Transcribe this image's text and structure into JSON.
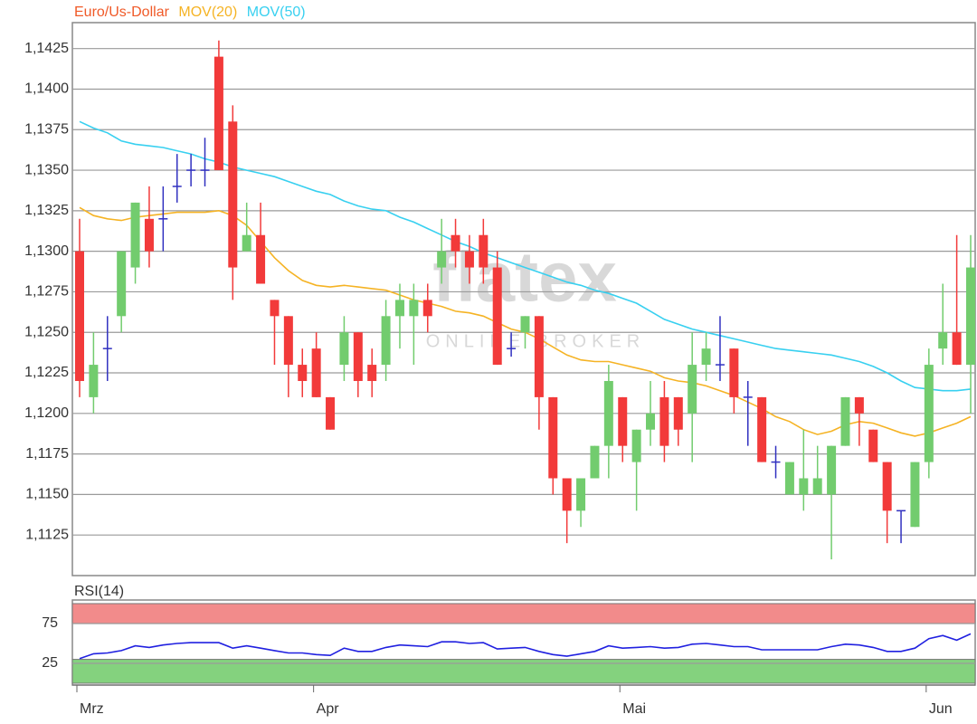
{
  "watermark": {
    "brand": "flatex",
    "tagline": "ONLINE BROKER"
  },
  "chart_data": [
    {
      "type": "candlestick",
      "up_color": "#72cc6e",
      "down_color": "#f23a3a",
      "doji_color": "#3030c0",
      "ylim": [
        1.11,
        1.1441
      ],
      "yticks": [
        {
          "value": 1.1125,
          "label": "1,1125"
        },
        {
          "value": 1.115,
          "label": "1,1150"
        },
        {
          "value": 1.1175,
          "label": "1,1175"
        },
        {
          "value": 1.12,
          "label": "1,1200"
        },
        {
          "value": 1.1225,
          "label": "1,1225"
        },
        {
          "value": 1.125,
          "label": "1,1250"
        },
        {
          "value": 1.1275,
          "label": "1,1275"
        },
        {
          "value": 1.13,
          "label": "1,1300"
        },
        {
          "value": 1.1325,
          "label": "1,1325"
        },
        {
          "value": 1.135,
          "label": "1,1350"
        },
        {
          "value": 1.1375,
          "label": "1,1375"
        },
        {
          "value": 1.14,
          "label": "1,1400"
        },
        {
          "value": 1.1425,
          "label": "1,1425"
        }
      ],
      "grid": true,
      "series": [
        {
          "name": "Euro/Us-Dollar",
          "color": "#f05a28",
          "open": [
            1.13,
            1.121,
            1.124,
            1.126,
            1.129,
            1.132,
            1.132,
            1.134,
            1.135,
            1.135,
            1.142,
            1.138,
            1.13,
            1.131,
            1.127,
            1.126,
            1.123,
            1.124,
            1.121,
            1.123,
            1.125,
            1.123,
            1.123,
            1.126,
            1.126,
            1.127,
            1.129,
            1.131,
            1.13,
            1.131,
            1.129,
            1.124,
            1.125,
            1.126,
            1.121,
            1.116,
            1.114,
            1.116,
            1.118,
            1.121,
            1.117,
            1.119,
            1.121,
            1.121,
            1.12,
            1.123,
            1.123,
            1.124,
            1.121,
            1.121,
            1.117,
            1.115,
            1.115,
            1.115,
            1.115,
            1.118,
            1.121,
            1.119,
            1.117,
            1.114,
            1.113,
            1.117,
            1.124,
            1.125,
            1.123
          ],
          "high": [
            1.132,
            1.125,
            1.126,
            1.13,
            1.133,
            1.134,
            1.134,
            1.136,
            1.136,
            1.137,
            1.143,
            1.139,
            1.133,
            1.133,
            1.127,
            1.126,
            1.124,
            1.125,
            1.121,
            1.126,
            1.125,
            1.124,
            1.127,
            1.128,
            1.128,
            1.128,
            1.132,
            1.132,
            1.131,
            1.132,
            1.13,
            1.125,
            1.126,
            1.126,
            1.121,
            1.116,
            1.116,
            1.118,
            1.123,
            1.121,
            1.119,
            1.122,
            1.122,
            1.121,
            1.125,
            1.125,
            1.126,
            1.124,
            1.122,
            1.121,
            1.118,
            1.117,
            1.119,
            1.118,
            1.118,
            1.121,
            1.121,
            1.119,
            1.117,
            1.114,
            1.117,
            1.124,
            1.128,
            1.131,
            1.131
          ],
          "low": [
            1.121,
            1.12,
            1.122,
            1.125,
            1.128,
            1.129,
            1.13,
            1.133,
            1.134,
            1.134,
            1.135,
            1.127,
            1.13,
            1.128,
            1.123,
            1.121,
            1.121,
            1.121,
            1.119,
            1.122,
            1.121,
            1.121,
            1.122,
            1.124,
            1.123,
            1.125,
            1.128,
            1.129,
            1.128,
            1.128,
            1.123,
            1.1235,
            1.124,
            1.119,
            1.115,
            1.112,
            1.113,
            1.116,
            1.116,
            1.117,
            1.114,
            1.118,
            1.117,
            1.118,
            1.117,
            1.122,
            1.122,
            1.12,
            1.118,
            1.117,
            1.116,
            1.115,
            1.114,
            1.115,
            1.111,
            1.118,
            1.118,
            1.117,
            1.112,
            1.112,
            1.113,
            1.116,
            1.123,
            1.123,
            1.12
          ],
          "close": [
            1.122,
            1.123,
            1.124,
            1.13,
            1.133,
            1.13,
            1.132,
            1.134,
            1.135,
            1.135,
            1.135,
            1.129,
            1.131,
            1.128,
            1.126,
            1.123,
            1.122,
            1.121,
            1.119,
            1.125,
            1.122,
            1.122,
            1.126,
            1.127,
            1.127,
            1.126,
            1.13,
            1.13,
            1.129,
            1.129,
            1.123,
            1.124,
            1.126,
            1.121,
            1.116,
            1.114,
            1.116,
            1.118,
            1.122,
            1.118,
            1.119,
            1.12,
            1.118,
            1.119,
            1.123,
            1.124,
            1.123,
            1.121,
            1.121,
            1.117,
            1.117,
            1.117,
            1.116,
            1.116,
            1.118,
            1.121,
            1.12,
            1.117,
            1.114,
            1.114,
            1.117,
            1.123,
            1.125,
            1.123,
            1.129
          ]
        },
        {
          "name": "MOV(20)",
          "color": "#f5b324",
          "values": [
            1.1327,
            1.1322,
            1.132,
            1.1319,
            1.1321,
            1.1322,
            1.1323,
            1.1324,
            1.1324,
            1.1324,
            1.1325,
            1.1322,
            1.1316,
            1.1306,
            1.1296,
            1.1288,
            1.1282,
            1.1279,
            1.1278,
            1.1279,
            1.1278,
            1.1277,
            1.1276,
            1.1273,
            1.127,
            1.1268,
            1.1266,
            1.1263,
            1.1262,
            1.126,
            1.1256,
            1.1252,
            1.125,
            1.1246,
            1.1241,
            1.1236,
            1.1233,
            1.1232,
            1.1232,
            1.123,
            1.1228,
            1.1226,
            1.1222,
            1.122,
            1.1219,
            1.1217,
            1.1214,
            1.1211,
            1.1207,
            1.1203,
            1.1198,
            1.1195,
            1.119,
            1.1187,
            1.1189,
            1.1193,
            1.1195,
            1.1194,
            1.1191,
            1.1188,
            1.1186,
            1.1188,
            1.1191,
            1.1194,
            1.1198
          ]
        },
        {
          "name": "MOV(50)",
          "color": "#38d0f0",
          "values": [
            1.138,
            1.1376,
            1.1373,
            1.1368,
            1.1366,
            1.1365,
            1.1364,
            1.1362,
            1.136,
            1.1357,
            1.1355,
            1.1352,
            1.135,
            1.1348,
            1.1346,
            1.1343,
            1.134,
            1.1337,
            1.1335,
            1.1331,
            1.1328,
            1.1326,
            1.1325,
            1.1321,
            1.1318,
            1.1314,
            1.131,
            1.1306,
            1.1303,
            1.1299,
            1.1296,
            1.1293,
            1.129,
            1.1287,
            1.1284,
            1.1281,
            1.1279,
            1.1276,
            1.1274,
            1.1271,
            1.1268,
            1.1263,
            1.1258,
            1.1255,
            1.1252,
            1.125,
            1.1248,
            1.1246,
            1.1244,
            1.1242,
            1.124,
            1.1239,
            1.1238,
            1.1237,
            1.1236,
            1.1234,
            1.1232,
            1.1229,
            1.1225,
            1.122,
            1.1216,
            1.1215,
            1.1214,
            1.1214,
            1.1215
          ]
        }
      ]
    },
    {
      "type": "line",
      "categories": [
        "Mrz",
        null,
        null,
        null,
        null,
        null,
        null,
        null,
        null,
        null,
        null,
        null,
        null,
        null,
        null,
        null,
        null,
        "Apr",
        null,
        null,
        null,
        null,
        null,
        null,
        null,
        null,
        null,
        null,
        null,
        null,
        null,
        null,
        null,
        null,
        null,
        null,
        null,
        null,
        null,
        "Mai",
        null,
        null,
        null,
        null,
        null,
        null,
        null,
        null,
        null,
        null,
        null,
        null,
        null,
        null,
        null,
        null,
        null,
        null,
        null,
        null,
        null,
        "Jun",
        null,
        null,
        null
      ],
      "ylim": [
        -2.3,
        104.5
      ],
      "yticks": [
        25,
        75
      ],
      "bands": [
        {
          "from": 75,
          "to": 100,
          "color": "#f28b8b"
        },
        {
          "from": 0,
          "to": 30,
          "color": "#84d27e"
        }
      ],
      "series": [
        {
          "name": "RSI(14)",
          "color": "#2020e0",
          "values": [
            31,
            37,
            38,
            41,
            47,
            45,
            48,
            50,
            51,
            51,
            51,
            44,
            47,
            44,
            41,
            38,
            38,
            36,
            35,
            44,
            40,
            40,
            45,
            48,
            47,
            46,
            52,
            52,
            50,
            51,
            43,
            44,
            45,
            40,
            36,
            34,
            37,
            40,
            47,
            44,
            45,
            46,
            44,
            45,
            49,
            50,
            48,
            46,
            46,
            42,
            42,
            42,
            42,
            42,
            46,
            49,
            48,
            45,
            40,
            40,
            44,
            56,
            60,
            54,
            62
          ]
        }
      ]
    }
  ]
}
